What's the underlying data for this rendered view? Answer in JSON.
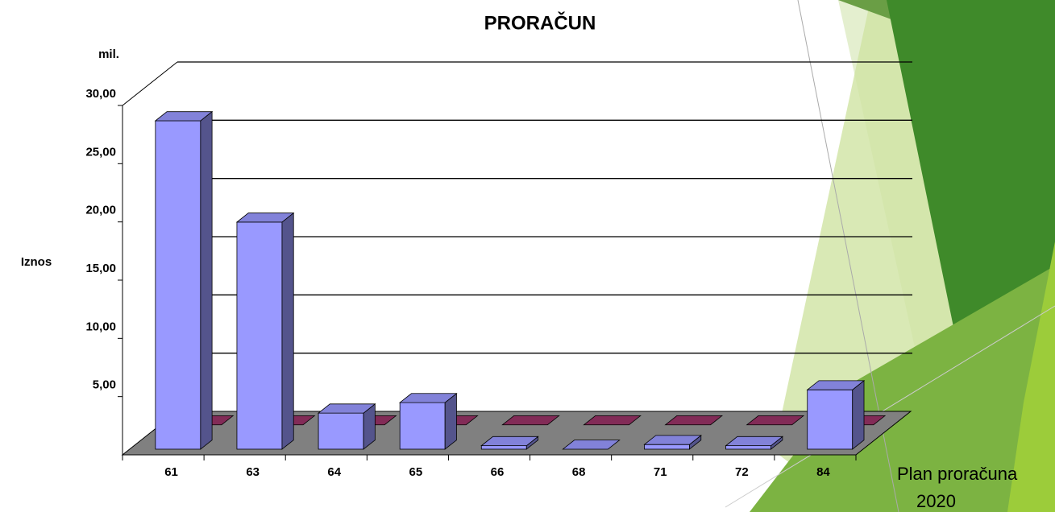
{
  "chart_data": {
    "type": "bar3d",
    "title": "PRORAČUN",
    "y_label": "Iznos",
    "y_unit": "mil.",
    "categories": [
      "61",
      "63",
      "64",
      "65",
      "66",
      "68",
      "71",
      "72",
      "84"
    ],
    "series": [
      {
        "color": "#9999ff",
        "values": [
          28.2,
          19.5,
          3.1,
          4.0,
          0.3,
          0,
          0.4,
          0.3,
          5.1
        ]
      },
      {
        "color": "#993366",
        "values": [
          0,
          0,
          0,
          0,
          0,
          0,
          0,
          0,
          0
        ]
      }
    ],
    "ylim": [
      0,
      30
    ],
    "yticks": [
      {
        "value": 5,
        "label": "5,00"
      },
      {
        "value": 10,
        "label": "10,00"
      },
      {
        "value": 15,
        "label": "15,00"
      },
      {
        "value": 20,
        "label": "20,00"
      },
      {
        "value": 25,
        "label": "25,00"
      },
      {
        "value": 30,
        "label": "30,00"
      }
    ],
    "grid": true
  },
  "slide": {
    "caption": [
      "Plan proračuna",
      "2020"
    ]
  }
}
